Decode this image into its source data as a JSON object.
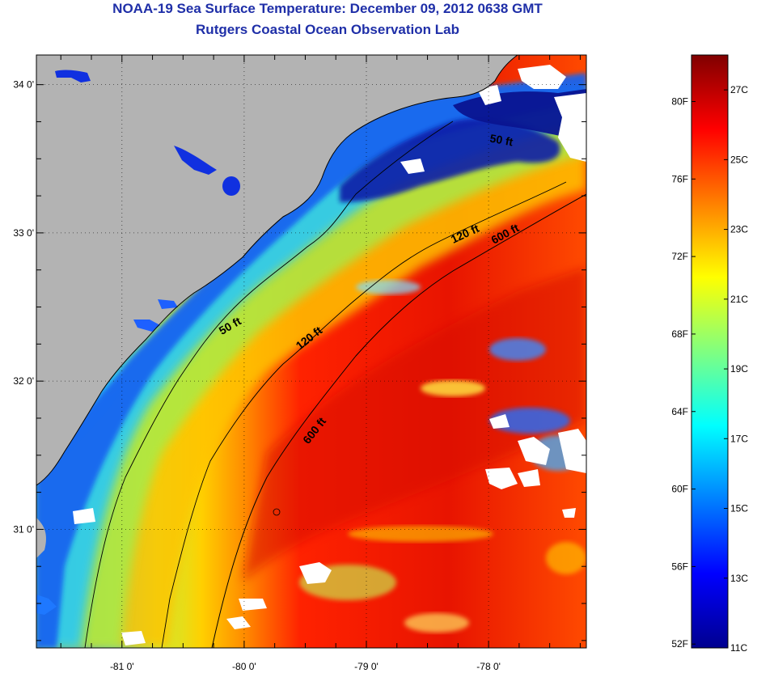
{
  "header": {
    "title": "NOAA-19 Sea Surface Temperature:  December 09, 2012 0638 GMT",
    "subtitle": "Rutgers Coastal Ocean Observation Lab"
  },
  "axes": {
    "lon_ticks": [
      {
        "value": -81,
        "label": "-81 0'"
      },
      {
        "value": -80,
        "label": "-80 0'"
      },
      {
        "value": -79,
        "label": "-79 0'"
      },
      {
        "value": -78,
        "label": "-78 0'"
      }
    ],
    "lat_ticks": [
      {
        "value": 34,
        "label": "34 0'"
      },
      {
        "value": 33,
        "label": "33 0'"
      },
      {
        "value": 32,
        "label": "32 0'"
      },
      {
        "value": 31,
        "label": "31 0'"
      }
    ],
    "lon_range": [
      -81.7,
      -77.2
    ],
    "lat_range": [
      30.2,
      34.2
    ]
  },
  "isobaths": [
    {
      "label": "50 ft",
      "depth_ft": 50
    },
    {
      "label": "120 ft",
      "depth_ft": 120
    },
    {
      "label": "600 ft",
      "depth_ft": 600
    }
  ],
  "isobath_labels": [
    {
      "text": "50 ft",
      "lon": -80.1,
      "lat": 32.35,
      "angle": -30
    },
    {
      "text": "120 ft",
      "lon": -79.45,
      "lat": 32.27,
      "angle": -38
    },
    {
      "text": "600 ft",
      "lon": -79.4,
      "lat": 31.65,
      "angle": -52
    },
    {
      "text": "120 ft",
      "lon": -78.18,
      "lat": 32.97,
      "angle": -25
    },
    {
      "text": "600 ft",
      "lon": -77.85,
      "lat": 32.97,
      "angle": -28
    },
    {
      "text": "50 ft",
      "lon": -77.9,
      "lat": 33.6,
      "angle": 10
    }
  ],
  "colorbar": {
    "min_c": 11,
    "max_c": 28,
    "celsius_ticks": [
      {
        "value": 11,
        "label": "11C"
      },
      {
        "value": 13,
        "label": "13C"
      },
      {
        "value": 15,
        "label": "15C"
      },
      {
        "value": 17,
        "label": "17C"
      },
      {
        "value": 19,
        "label": "19C"
      },
      {
        "value": 21,
        "label": "21C"
      },
      {
        "value": 23,
        "label": "23C"
      },
      {
        "value": 25,
        "label": "25C"
      },
      {
        "value": 27,
        "label": "27C"
      }
    ],
    "fahrenheit_ticks": [
      {
        "value": 52,
        "label": "52F"
      },
      {
        "value": 56,
        "label": "56F"
      },
      {
        "value": 60,
        "label": "60F"
      },
      {
        "value": 64,
        "label": "64F"
      },
      {
        "value": 68,
        "label": "68F"
      },
      {
        "value": 72,
        "label": "72F"
      },
      {
        "value": 76,
        "label": "76F"
      },
      {
        "value": 80,
        "label": "80F"
      }
    ],
    "colors": [
      "#00008f",
      "#0000ff",
      "#0080ff",
      "#00ffff",
      "#80ff80",
      "#ffff00",
      "#ff8000",
      "#ff0000",
      "#800000"
    ]
  },
  "colors": {
    "land": "#b3b3b3",
    "cloud": "#ffffff",
    "title": "#1f2fa8"
  }
}
